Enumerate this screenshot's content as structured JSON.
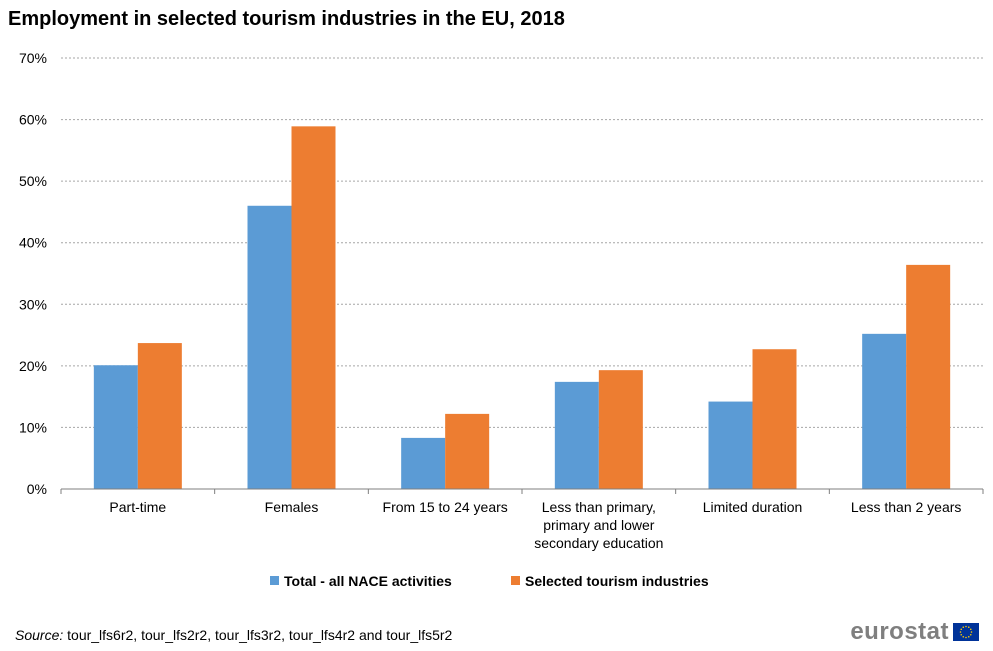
{
  "chart_data": {
    "type": "bar",
    "title": "Employment in selected tourism industries in the EU, 2018",
    "categories": [
      [
        "Part-time"
      ],
      [
        "Females"
      ],
      [
        "From 15 to 24 years"
      ],
      [
        "Less than primary,",
        "primary and lower",
        "secondary education"
      ],
      [
        "Limited duration"
      ],
      [
        "Less than 2 years"
      ]
    ],
    "series": [
      {
        "name": "Total - all NACE activities",
        "color": "#5b9bd5",
        "values": [
          20.1,
          46.0,
          8.3,
          17.4,
          14.2,
          25.2
        ]
      },
      {
        "name": "Selected tourism industries",
        "color": "#ed7d31",
        "values": [
          23.7,
          58.9,
          12.2,
          19.3,
          22.7,
          36.4
        ]
      }
    ],
    "ylim": [
      0,
      70
    ],
    "yticks": [
      0,
      10,
      20,
      30,
      40,
      50,
      60,
      70
    ],
    "ytick_suffix": "%",
    "grid": true,
    "legend_position": "bottom"
  },
  "source": {
    "label": "Source:",
    "text": " tour_lfs6r2, tour_lfs2r2, tour_lfs3r2, tour_lfs4r2 and tour_lfs5r2"
  },
  "brand": {
    "name": "eurostat"
  }
}
